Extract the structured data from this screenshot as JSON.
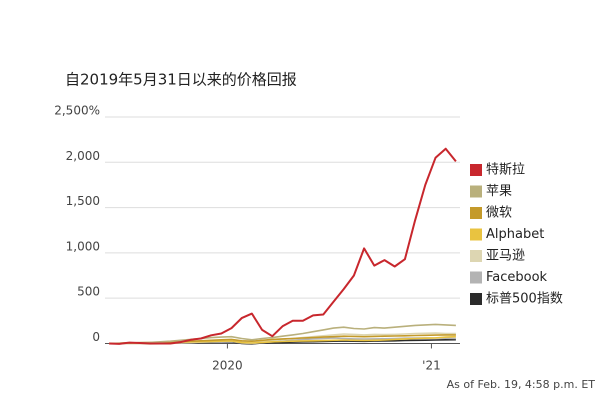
{
  "chart_data": {
    "type": "line",
    "title": "自2019年5月31日以来的价格回报",
    "note": "As of Feb. 19, 4:58 p.m. ET",
    "x": [
      2019.42,
      2019.47,
      2019.52,
      2019.57,
      2019.62,
      2019.67,
      2019.72,
      2019.77,
      2019.82,
      2019.87,
      2019.92,
      2019.97,
      2020.02,
      2020.07,
      2020.12,
      2020.17,
      2020.22,
      2020.27,
      2020.32,
      2020.37,
      2020.42,
      2020.47,
      2020.52,
      2020.57,
      2020.62,
      2020.67,
      2020.72,
      2020.77,
      2020.82,
      2020.87,
      2020.92,
      2020.97,
      2021.02,
      2021.07,
      2021.12
    ],
    "series": [
      {
        "name": "特斯拉",
        "color": "#c8272d",
        "values": [
          0,
          -5,
          10,
          5,
          0,
          0,
          0,
          15,
          40,
          55,
          90,
          110,
          170,
          280,
          330,
          150,
          80,
          190,
          250,
          250,
          310,
          320,
          460,
          600,
          750,
          1050,
          860,
          920,
          850,
          930,
          1360,
          1750,
          2050,
          2150,
          2010
        ]
      },
      {
        "name": "苹果",
        "color": "#b9b07c",
        "values": [
          0,
          2,
          5,
          8,
          12,
          18,
          25,
          35,
          45,
          55,
          65,
          70,
          75,
          55,
          40,
          55,
          65,
          80,
          95,
          110,
          130,
          150,
          170,
          180,
          165,
          160,
          175,
          170,
          180,
          190,
          200,
          205,
          210,
          205,
          200
        ]
      },
      {
        "name": "微软",
        "color": "#c49a2a",
        "values": [
          0,
          3,
          6,
          8,
          10,
          12,
          15,
          20,
          25,
          30,
          35,
          40,
          45,
          30,
          25,
          35,
          45,
          50,
          55,
          60,
          65,
          70,
          75,
          80,
          78,
          75,
          78,
          80,
          82,
          85,
          88,
          90,
          92,
          95,
          95
        ]
      },
      {
        "name": "Alphabet",
        "color": "#e9c340",
        "values": [
          0,
          2,
          4,
          6,
          8,
          10,
          12,
          15,
          18,
          20,
          22,
          25,
          28,
          10,
          5,
          12,
          18,
          22,
          25,
          28,
          30,
          32,
          35,
          38,
          35,
          33,
          35,
          38,
          45,
          50,
          55,
          58,
          62,
          70,
          75
        ]
      },
      {
        "name": "亚马逊",
        "color": "#ddd6b2",
        "values": [
          0,
          0,
          -2,
          -3,
          -5,
          -3,
          0,
          5,
          10,
          15,
          20,
          25,
          30,
          20,
          15,
          25,
          35,
          45,
          55,
          65,
          75,
          85,
          95,
          105,
          100,
          95,
          100,
          98,
          100,
          105,
          110,
          112,
          115,
          110,
          110
        ]
      },
      {
        "name": "Facebook",
        "color": "#b3b3b3",
        "values": [
          0,
          -2,
          0,
          2,
          5,
          5,
          8,
          10,
          12,
          15,
          18,
          20,
          22,
          5,
          0,
          10,
          18,
          25,
          35,
          45,
          50,
          55,
          60,
          55,
          50,
          48,
          50,
          52,
          55,
          58,
          60,
          62,
          60,
          58,
          55
        ]
      },
      {
        "name": "标普500指数",
        "color": "#2b2b2b",
        "values": [
          0,
          2,
          3,
          4,
          5,
          6,
          8,
          10,
          12,
          14,
          15,
          16,
          18,
          0,
          -5,
          5,
          10,
          12,
          15,
          18,
          20,
          22,
          25,
          27,
          25,
          24,
          26,
          28,
          30,
          33,
          35,
          36,
          38,
          40,
          42
        ]
      }
    ],
    "xlim": [
      2019.4,
      2021.14
    ],
    "xticks": [
      2020,
      {
        "value": 2021,
        "label": "'21"
      }
    ],
    "ylim": [
      -50,
      2500
    ],
    "yticks": [
      0,
      500,
      {
        "value": 1000,
        "label": "1,000"
      },
      {
        "value": 1500,
        "label": "1,500"
      },
      {
        "value": 2000,
        "label": "2,000"
      },
      {
        "value": 2500,
        "label": "2,500%"
      }
    ],
    "grid": true
  }
}
